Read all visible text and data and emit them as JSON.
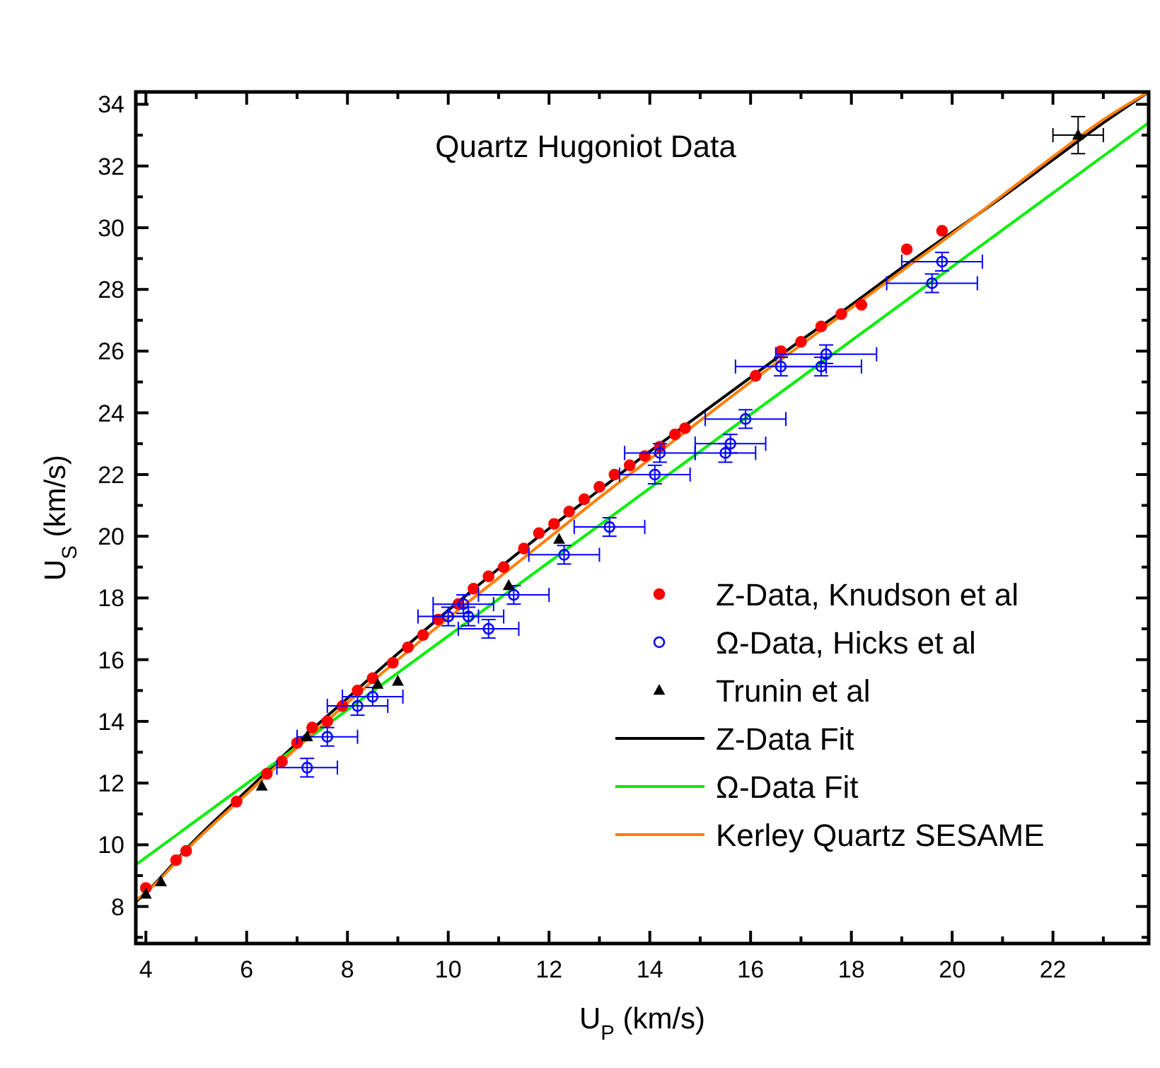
{
  "chart_data": {
    "type": "scatter",
    "title": "Quartz Hugoniot Data",
    "xlabel": "U$_{P}$ (km/s)",
    "ylabel": "U$_{S}$ (km/s)",
    "xlim": [
      3.8,
      23.9
    ],
    "ylim": [
      6.8,
      34.4
    ],
    "xticks": [
      4,
      {
        "value": 5,
        "label": null
      },
      6,
      {
        "value": 7,
        "label": null
      },
      8,
      {
        "value": 9,
        "label": null
      },
      10,
      {
        "value": 11,
        "label": null
      },
      12,
      {
        "value": 13,
        "label": null
      },
      14,
      {
        "value": 15,
        "label": null
      },
      16,
      {
        "value": 17,
        "label": null
      },
      18,
      {
        "value": 19,
        "label": null
      },
      20,
      {
        "value": 21,
        "label": null
      },
      22,
      {
        "value": 23,
        "label": null
      }
    ],
    "yticks": [
      {
        "value": 7,
        "label": null
      },
      8,
      {
        "value": 9,
        "label": null
      },
      10,
      {
        "value": 11,
        "label": null
      },
      12,
      {
        "value": 13,
        "label": null
      },
      14,
      {
        "value": 15,
        "label": null
      },
      16,
      {
        "value": 17,
        "label": null
      },
      18,
      {
        "value": 19,
        "label": null
      },
      20,
      {
        "value": 21,
        "label": null
      },
      22,
      {
        "value": 23,
        "label": null
      },
      24,
      {
        "value": 25,
        "label": null
      },
      26,
      {
        "value": 27,
        "label": null
      },
      28,
      {
        "value": 29,
        "label": null
      },
      30,
      {
        "value": 31,
        "label": null
      },
      32,
      {
        "value": 33,
        "label": null
      },
      34
    ],
    "grid": false,
    "legend": "bottom right",
    "series": [
      {
        "name": "Z-Data, Knudson et al",
        "marker": "circle",
        "color": "#ff0000",
        "x": [
          4.0,
          4.6,
          4.8,
          5.8,
          6.4,
          6.7,
          7.0,
          7.3,
          7.6,
          7.9,
          8.2,
          8.5,
          8.9,
          9.2,
          9.5,
          9.8,
          10.2,
          10.5,
          10.8,
          11.1,
          11.5,
          11.8,
          12.1,
          12.4,
          12.7,
          13.0,
          13.3,
          13.6,
          13.9,
          14.2,
          14.5,
          14.7,
          16.1,
          16.6,
          17.0,
          17.4,
          17.8,
          18.2,
          19.1,
          19.8
        ],
        "values": [
          8.6,
          9.5,
          9.8,
          11.4,
          12.3,
          12.7,
          13.3,
          13.8,
          14.0,
          14.5,
          15.0,
          15.4,
          15.9,
          16.4,
          16.8,
          17.3,
          17.8,
          18.3,
          18.7,
          19.0,
          19.6,
          20.1,
          20.4,
          20.8,
          21.2,
          21.6,
          22.0,
          22.3,
          22.6,
          22.9,
          23.3,
          23.5,
          25.2,
          26.0,
          26.3,
          26.8,
          27.2,
          27.5,
          29.3,
          29.9
        ]
      },
      {
        "name": "Ω-Data, Hicks et al",
        "marker": "circle",
        "color": "#0000ff",
        "x": [
          7.2,
          7.6,
          8.2,
          8.5,
          10.0,
          10.3,
          10.4,
          10.8,
          11.3,
          12.3,
          13.2,
          14.1,
          14.2,
          15.5,
          15.6,
          15.9,
          16.6,
          17.4,
          17.5,
          19.6,
          19.8
        ],
        "values": [
          12.5,
          13.5,
          14.5,
          14.8,
          17.4,
          17.8,
          17.4,
          17.0,
          18.1,
          19.4,
          20.3,
          22.0,
          22.7,
          22.7,
          23.0,
          23.8,
          25.5,
          25.5,
          25.9,
          28.2,
          28.9
        ],
        "xerrors": [
          0.6,
          0.6,
          0.6,
          0.6,
          0.6,
          0.6,
          0.7,
          0.6,
          0.7,
          0.7,
          0.7,
          0.7,
          0.7,
          0.6,
          0.7,
          0.8,
          0.9,
          0.8,
          1.0,
          0.9,
          0.8
        ],
        "errors": [
          0.3,
          0.3,
          0.3,
          0.3,
          0.3,
          0.3,
          0.3,
          0.3,
          0.3,
          0.3,
          0.3,
          0.3,
          0.3,
          0.3,
          0.3,
          0.3,
          0.3,
          0.3,
          0.3,
          0.3,
          0.3
        ]
      },
      {
        "name": "Trunin et al",
        "marker": "triangle",
        "color": "#000000",
        "x": [
          4.0,
          4.3,
          6.3,
          7.2,
          8.6,
          9.0,
          11.2,
          12.2,
          22.5
        ],
        "values": [
          8.4,
          8.8,
          11.9,
          13.5,
          15.2,
          15.3,
          18.4,
          19.9,
          33.0
        ],
        "xerrors": [
          null,
          null,
          null,
          null,
          null,
          null,
          null,
          null,
          0.5
        ],
        "errors": [
          null,
          null,
          null,
          null,
          null,
          null,
          null,
          null,
          0.6
        ]
      },
      {
        "name": "Z-Data Fit",
        "type": "line",
        "marker": "none",
        "line_style": "solid",
        "color": "#000000",
        "x": [
          3.8,
          4,
          5,
          6,
          7,
          8,
          9,
          10,
          11,
          12,
          13,
          14,
          15,
          16,
          17,
          18,
          19,
          20,
          21,
          22,
          23,
          23.9
        ],
        "values": [
          8.15,
          8.45,
          10.2,
          11.75,
          13.3,
          14.75,
          16.2,
          17.6,
          18.95,
          20.25,
          21.5,
          22.75,
          23.95,
          25.15,
          26.35,
          27.5,
          28.7,
          29.85,
          31.0,
          32.2,
          33.4,
          34.4
        ]
      },
      {
        "name": "Ω-Data Fit",
        "type": "line",
        "marker": "none",
        "line_style": "solid",
        "color": "#00ee00",
        "x": [
          3.8,
          23.9
        ],
        "values": [
          9.35,
          33.4
        ]
      },
      {
        "name": "Kerley Quartz SESAME",
        "type": "line",
        "marker": "none",
        "line_style": "solid",
        "color": "#ff7f00",
        "x": [
          3.8,
          4,
          5,
          6,
          7,
          8,
          9,
          10,
          11,
          12,
          13,
          14,
          15,
          16,
          17,
          18,
          19,
          20,
          21,
          22,
          23,
          23.9
        ],
        "values": [
          8.2,
          8.45,
          10.15,
          11.65,
          13.15,
          14.6,
          16.0,
          17.35,
          18.65,
          19.95,
          21.25,
          22.5,
          23.75,
          25.0,
          26.2,
          27.4,
          28.6,
          29.8,
          31.05,
          32.3,
          33.5,
          34.4
        ]
      }
    ]
  }
}
